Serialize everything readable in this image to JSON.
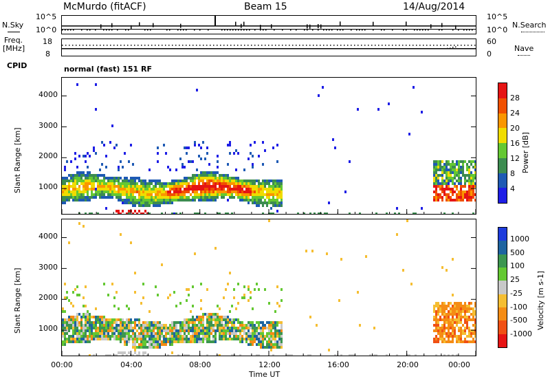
{
  "header": {
    "station": "McMurdo (fitACF)",
    "beam": "Beam 15",
    "date": "14/Aug/2014"
  },
  "top_panel": {
    "left_label": "N.Sky",
    "right_label": "N.Search",
    "left_ticks": [
      "10^5",
      "10^0"
    ],
    "right_ticks": [
      "10^5",
      "10^0"
    ]
  },
  "freq_panel": {
    "left_label_1": "Freq.",
    "left_label_2": "[MHz]",
    "left_ticks": [
      "18",
      "8"
    ],
    "right_ticks": [
      "60",
      "0"
    ],
    "right_label": "Nave",
    "cpid_label": "CPID"
  },
  "mode_text": "normal (fast) 151 RF",
  "x_axis": {
    "ticks": [
      "00:00",
      "04:00",
      "08:00",
      "12:00",
      "16:00",
      "20:00",
      "00:00"
    ],
    "label": "Time UT"
  },
  "chart_data": [
    {
      "type": "heatmap",
      "title": "",
      "ylabel": "Slant Range [km]",
      "xlabel": "",
      "y_ticks": [
        "1000",
        "2000",
        "3000",
        "4000"
      ],
      "ylim": [
        180,
        4590
      ],
      "xlim_hours": [
        0,
        24
      ],
      "colorbar": {
        "label": "Power [dB]",
        "ticks": [
          "4",
          "8",
          "12",
          "16",
          "20",
          "24",
          "28"
        ],
        "range": [
          0,
          30
        ],
        "colors": [
          "#1e1ee6",
          "#1e5ab4",
          "#3c8c50",
          "#64c832",
          "#f0dc00",
          "#fa9600",
          "#f05000",
          "#e61414"
        ]
      },
      "regions": [
        {
          "name": "main band",
          "t": [
            0.0,
            12.7
          ],
          "r": [
            600,
            1450
          ],
          "values": "10-30"
        },
        {
          "name": "upper patches",
          "t": [
            0.5,
            12.5
          ],
          "r": [
            1600,
            2600
          ],
          "values": "3-10"
        },
        {
          "name": "late band",
          "t": [
            21.5,
            24.0
          ],
          "r": [
            600,
            1950
          ],
          "values": "6-28"
        }
      ]
    },
    {
      "type": "heatmap",
      "title": "",
      "ylabel": "Slant Range [km]",
      "xlabel": "Time UT",
      "y_ticks": [
        "1000",
        "2000",
        "3000",
        "4000"
      ],
      "ylim": [
        180,
        4590
      ],
      "xlim_hours": [
        0,
        24
      ],
      "colorbar": {
        "label": "Velocity [m s-1]",
        "ticks": [
          "1000",
          "500",
          "100",
          "25",
          "-25",
          "-100",
          "-500",
          "-1000"
        ],
        "colors": [
          "#1e3cdc",
          "#1e64a0",
          "#3c9650",
          "#64c832",
          "#c8c8c8",
          "#f5be32",
          "#f58c14",
          "#f05014",
          "#e61414"
        ]
      },
      "regions": [
        {
          "name": "main band",
          "t": [
            0.0,
            12.7
          ],
          "r": [
            600,
            1450
          ],
          "values": "-100 to 500"
        },
        {
          "name": "upper patches",
          "t": [
            0.5,
            12.5
          ],
          "r": [
            1600,
            2600
          ],
          "values": "-100 to 100"
        },
        {
          "name": "late band",
          "t": [
            21.5,
            24.0
          ],
          "r": [
            600,
            1950
          ],
          "values": "-500 to -25"
        }
      ]
    }
  ]
}
